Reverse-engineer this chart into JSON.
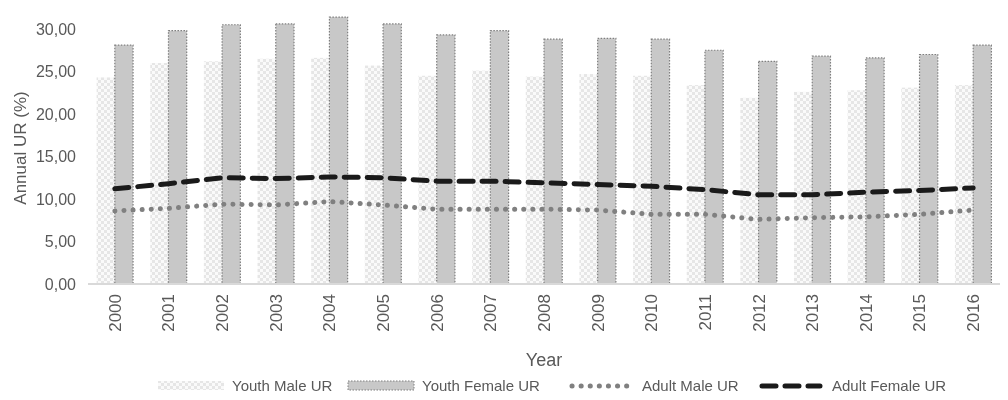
{
  "chart_data": {
    "type": "bar",
    "xlabel": "Year",
    "ylabel": "Annual UR (%)",
    "categories": [
      "2000",
      "2001",
      "2002",
      "2003",
      "2004",
      "2005",
      "2006",
      "2007",
      "2008",
      "2009",
      "2010",
      "2011",
      "2012",
      "2013",
      "2014",
      "2015",
      "2016"
    ],
    "series": [
      {
        "name": "Youth Male UR",
        "color": "#e6e6e6",
        "values": [
          24.3,
          26.0,
          26.2,
          26.5,
          26.6,
          25.7,
          24.5,
          25.1,
          24.4,
          24.7,
          24.5,
          23.4,
          21.9,
          22.6,
          22.8,
          23.1,
          23.4
        ]
      },
      {
        "name": "Youth Female UR",
        "color": "#c8c8c8",
        "values": [
          28.1,
          29.8,
          30.5,
          30.6,
          31.4,
          30.6,
          29.3,
          29.8,
          28.8,
          28.9,
          28.8,
          27.5,
          26.2,
          26.8,
          26.6,
          27.0,
          28.1
        ]
      },
      {
        "name": "Adult Male UR",
        "type": "line",
        "color": "#808080",
        "line_style": "dotted",
        "values": [
          8.6,
          8.9,
          9.4,
          9.3,
          9.7,
          9.3,
          8.8,
          8.8,
          8.8,
          8.7,
          8.2,
          8.2,
          7.6,
          7.8,
          7.9,
          8.2,
          8.7
        ]
      },
      {
        "name": "Adult Female UR",
        "type": "line",
        "color": "#1a1a1a",
        "line_style": "dashed",
        "values": [
          11.2,
          11.8,
          12.5,
          12.4,
          12.6,
          12.5,
          12.1,
          12.1,
          11.9,
          11.7,
          11.5,
          11.1,
          10.5,
          10.5,
          10.8,
          11.0,
          11.3
        ]
      }
    ],
    "ylim": [
      0,
      32
    ],
    "yticks": [
      {
        "value": 0,
        "label": "0,00"
      },
      {
        "value": 5,
        "label": "5,00"
      },
      {
        "value": 10,
        "label": "10,00"
      },
      {
        "value": 15,
        "label": "15,00"
      },
      {
        "value": 20,
        "label": "20,00"
      },
      {
        "value": 25,
        "label": "25,00"
      },
      {
        "value": 30,
        "label": "30,00"
      }
    ],
    "grid": false,
    "legend": "bottom"
  }
}
